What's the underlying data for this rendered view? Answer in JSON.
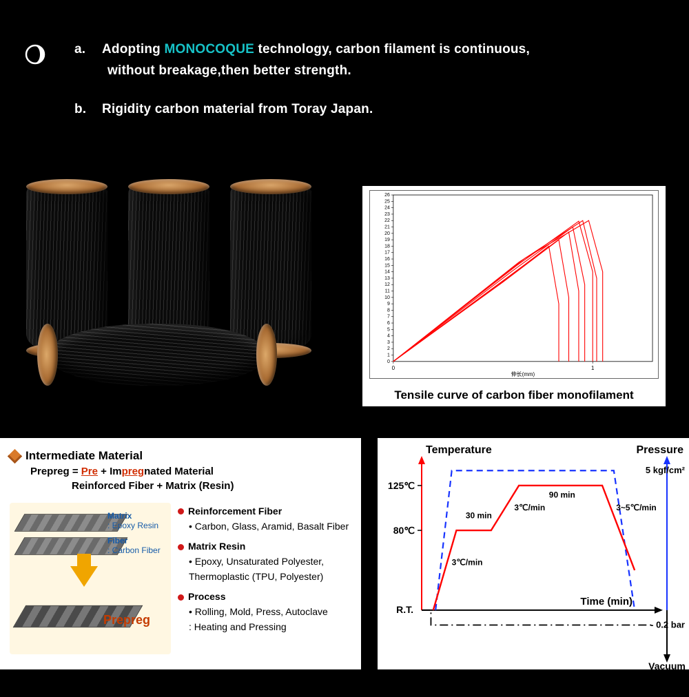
{
  "header": {
    "a_marker": "a.",
    "a_pre": "Adopting ",
    "a_highlight": "MONOCOQUE",
    "a_post": " technology, carbon filament is continuous,",
    "a_line2": " without breakage,then better strength.",
    "b_marker": "b.",
    "b_text": "Rigidity carbon material from Toray Japan."
  },
  "tensile_chart": {
    "caption": "Tensile curve of carbon fiber monofilament",
    "xlabel": "伸长(mm)",
    "ymax": 26,
    "ytick_step": 1,
    "xlim": [
      0,
      1.3
    ],
    "xticks": [
      0,
      1
    ],
    "line_color": "#ff0000",
    "axis_color": "#000000",
    "tick_fontsize": 7,
    "series": [
      {
        "x": [
          0,
          0.62,
          0.93,
          1.0,
          1.0
        ],
        "y": [
          0,
          15,
          21.9,
          14,
          0
        ]
      },
      {
        "x": [
          0,
          0.6,
          0.9,
          0.96,
          0.96
        ],
        "y": [
          0,
          14.2,
          21.0,
          12,
          0
        ]
      },
      {
        "x": [
          0,
          0.58,
          0.88,
          0.93,
          0.93
        ],
        "y": [
          0,
          13.3,
          20.2,
          11,
          0
        ]
      },
      {
        "x": [
          0,
          0.63,
          0.95,
          1.02,
          1.02
        ],
        "y": [
          0,
          15.5,
          22.0,
          13,
          0
        ]
      },
      {
        "x": [
          0,
          0.55,
          0.83,
          0.88,
          0.88
        ],
        "y": [
          0,
          12.4,
          19.0,
          10,
          0
        ]
      },
      {
        "x": [
          0,
          0.66,
          0.98,
          1.05,
          1.05
        ],
        "y": [
          0,
          16.1,
          22.0,
          14,
          0
        ]
      },
      {
        "x": [
          0,
          0.52,
          0.78,
          0.83,
          0.83
        ],
        "y": [
          0,
          11.8,
          18.0,
          9,
          0
        ]
      }
    ]
  },
  "prepreg": {
    "title": "Intermediate Material",
    "prepreg_line_pre": "Prepreg = ",
    "pre_word1": "Pre",
    "plus": " + Im",
    "pre_word2": "preg",
    "prepreg_line_post": "nated Material",
    "sub2": "Reinforced Fiber + Matrix (Resin)",
    "diag_matrix": "Matrix",
    "diag_matrix2": ": Epoxy Resin",
    "diag_fiber": "Fiber",
    "diag_fiber2": ": Carbon Fiber",
    "diag_prepreg": "Prepreg",
    "sections": [
      {
        "hdr": "Reinforcement Fiber",
        "items": [
          "• Carbon, Glass, Aramid, Basalt Fiber"
        ]
      },
      {
        "hdr": "Matrix Resin",
        "items": [
          "• Epoxy, Unsaturated Polyester,",
          "  Thermoplastic (TPU, Polyester)"
        ]
      },
      {
        "hdr": "Process",
        "items": [
          "• Rolling, Mold, Press, Autoclave",
          ": Heating and Pressing"
        ]
      }
    ],
    "bg_color": "#ffffff",
    "box_bg": "#fff7e2"
  },
  "cure_chart": {
    "temp_label": "Temperature",
    "pressure_label": "Pressure",
    "time_label": "Time (min)",
    "vacuum_label": "Vacuum",
    "pressure_value": "5 kgf/cm²",
    "vacuum_value": "- 0.2 bar",
    "rt_label": "R.T.",
    "ytick_125": "125℃",
    "ytick_80": "80℃",
    "ramp1": "3℃/min",
    "hold1": "30 min",
    "ramp2": "3℃/min",
    "hold2": "90 min",
    "ramp3": "3~5℃/min",
    "temp_color": "#ff0000",
    "pressure_color": "#1733ff",
    "vacuum_color": "#000000",
    "temp_profile": {
      "x": [
        0.05,
        0.15,
        0.3,
        0.42,
        0.78,
        0.92
      ],
      "y": [
        0,
        80,
        80,
        125,
        125,
        40
      ]
    },
    "pressure_profile": {
      "x": [
        0.06,
        0.13,
        0.83,
        0.92
      ],
      "y": [
        0,
        140,
        140,
        0
      ]
    },
    "vacuum_profile": {
      "x": [
        0.0,
        0.04,
        0.04,
        1.0
      ],
      "y": [
        0,
        0,
        -15,
        -15
      ]
    },
    "y_range": [
      -25,
      145
    ]
  }
}
